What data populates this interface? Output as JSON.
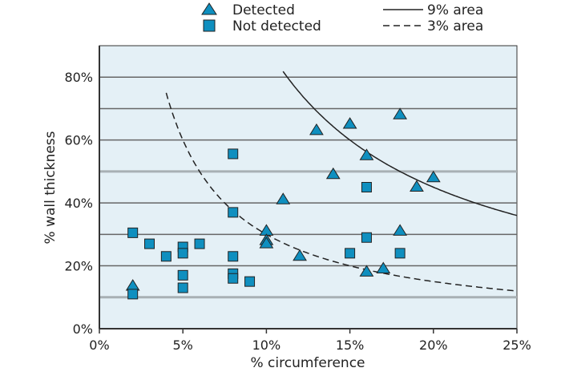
{
  "chart_data": {
    "type": "scatter",
    "xlabel": "% circumference",
    "ylabel": "% wall thickness",
    "xlim": [
      0,
      25
    ],
    "ylim": [
      0,
      90
    ],
    "xticks": [
      "0%",
      "5%",
      "10%",
      "15%",
      "20%",
      "25%"
    ],
    "xtick_values": [
      0,
      5,
      10,
      15,
      20,
      25
    ],
    "yticks": [
      "0%",
      "20%",
      "40%",
      "60%",
      "80%"
    ],
    "ytick_values": [
      0,
      20,
      40,
      60,
      80
    ],
    "legend": {
      "detected": "Detected",
      "not_detected": "Not detected",
      "area9": "9% area",
      "area3": "3% area",
      "placement": "top"
    },
    "colors": {
      "marker": "#0f8fbf",
      "plot_bg": "#e4f0f6"
    },
    "series": [
      {
        "name": "Detected",
        "marker": "triangle",
        "points": [
          [
            2,
            13.5
          ],
          [
            10,
            31
          ],
          [
            10,
            28
          ],
          [
            10,
            27
          ],
          [
            11,
            41
          ],
          [
            12,
            23
          ],
          [
            13,
            63
          ],
          [
            14,
            49
          ],
          [
            15,
            65
          ],
          [
            16,
            55
          ],
          [
            16,
            18
          ],
          [
            17,
            19
          ],
          [
            18,
            31
          ],
          [
            18,
            68
          ],
          [
            19,
            45
          ],
          [
            20,
            48
          ]
        ]
      },
      {
        "name": "Not detected",
        "marker": "square",
        "points": [
          [
            2,
            30.5
          ],
          [
            2,
            11
          ],
          [
            3,
            27
          ],
          [
            4,
            23
          ],
          [
            5,
            26
          ],
          [
            5,
            24
          ],
          [
            5,
            17
          ],
          [
            5,
            13
          ],
          [
            6,
            27
          ],
          [
            8,
            55.6
          ],
          [
            8,
            37
          ],
          [
            8,
            23
          ],
          [
            8,
            17.5
          ],
          [
            8,
            16
          ],
          [
            9,
            15
          ],
          [
            15,
            24
          ],
          [
            16,
            45
          ],
          [
            16,
            29
          ],
          [
            18,
            24
          ]
        ]
      }
    ],
    "curves": [
      {
        "name": "9% area",
        "style": "solid",
        "k": 900,
        "xrange": [
          11,
          25
        ]
      },
      {
        "name": "3% area",
        "style": "dashed",
        "k": 300,
        "xrange": [
          4,
          25
        ]
      }
    ]
  }
}
